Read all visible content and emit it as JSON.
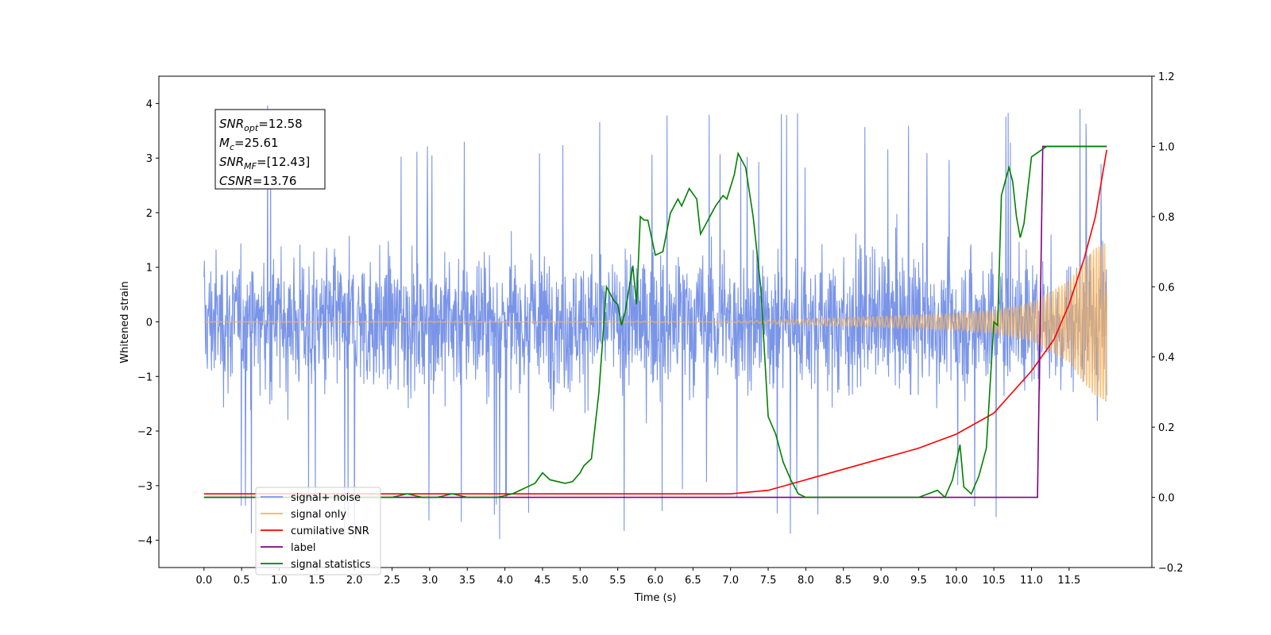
{
  "chart_data": {
    "type": "line",
    "xlabel": "Time (s)",
    "ylabel_left": "Whitened strain",
    "ylabel_right": "",
    "xlim": [
      -0.6,
      12.6
    ],
    "ylim_left": [
      -4.5,
      4.5
    ],
    "ylim_right": [
      -0.2,
      1.2
    ],
    "x_ticks": [
      0.0,
      0.5,
      1.0,
      1.5,
      2.0,
      2.5,
      3.0,
      3.5,
      4.0,
      4.5,
      5.0,
      5.5,
      6.0,
      6.5,
      7.0,
      7.5,
      8.0,
      8.5,
      9.0,
      9.5,
      10.0,
      10.5,
      11.0,
      11.5
    ],
    "x_tick_labels": [
      "0.0",
      "0.5",
      "1.0",
      "1.5",
      "2.0",
      "2.5",
      "3.0",
      "3.5",
      "4.0",
      "4.5",
      "5.0",
      "5.5",
      "6.0",
      "6.5",
      "7.0",
      "7.5",
      "8.0",
      "8.5",
      "9.0",
      "9.5",
      "10.0",
      "10.5",
      "11.0",
      "11.5"
    ],
    "y_left_ticks": [
      -4,
      -3,
      -2,
      -1,
      0,
      1,
      2,
      3,
      4
    ],
    "y_left_tick_labels": [
      "−4",
      "−3",
      "−2",
      "−1",
      "0",
      "1",
      "2",
      "3",
      "4"
    ],
    "y_right_ticks": [
      -0.2,
      0.0,
      0.2,
      0.4,
      0.6,
      0.8,
      1.0,
      1.2
    ],
    "y_right_tick_labels": [
      "−0.2",
      "0.0",
      "0.2",
      "0.4",
      "0.6",
      "0.8",
      "1.0",
      "1.2"
    ],
    "grid": false,
    "legend_position": "lower-left",
    "annotation": {
      "lines": [
        {
          "name": "SNR",
          "sub": "opt",
          "value": "=12.58"
        },
        {
          "name": "M",
          "sub": "c",
          "value": "=25.61"
        },
        {
          "name": "SNR",
          "sub": "MF",
          "value": "=[12.43]"
        },
        {
          "name": "CSNR",
          "sub": "",
          "value": "=13.76"
        }
      ]
    },
    "series": [
      {
        "name": "signal+ noise",
        "axis": "left",
        "color": "#7a95e8",
        "style": "noise",
        "x_range": [
          0.0,
          12.0
        ],
        "envelope_typical": 1.8,
        "peak_values": [
          4.1,
          -4.0
        ]
      },
      {
        "name": "signal only",
        "axis": "left",
        "color": "#f5b35c",
        "style": "chirp",
        "x_range": [
          0.0,
          12.0
        ],
        "amplitude_points": [
          [
            0.0,
            0.0
          ],
          [
            7.0,
            0.01
          ],
          [
            8.0,
            0.05
          ],
          [
            9.0,
            0.1
          ],
          [
            10.0,
            0.15
          ],
          [
            10.5,
            0.2
          ],
          [
            11.0,
            0.35
          ],
          [
            11.5,
            0.75
          ],
          [
            11.8,
            1.3
          ],
          [
            12.0,
            1.5
          ]
        ]
      },
      {
        "name": "cumilative SNR",
        "axis": "right",
        "color": "#ff0000",
        "x": [
          0.0,
          7.0,
          7.5,
          8.0,
          8.5,
          9.0,
          9.5,
          10.0,
          10.5,
          11.0,
          11.3,
          11.5,
          11.7,
          11.85,
          12.0
        ],
        "y": [
          0.01,
          0.01,
          0.02,
          0.05,
          0.08,
          0.11,
          0.14,
          0.18,
          0.24,
          0.36,
          0.45,
          0.55,
          0.68,
          0.8,
          0.99
        ]
      },
      {
        "name": "label",
        "axis": "right",
        "color": "#800080",
        "x": [
          0.0,
          11.08,
          11.15,
          12.0
        ],
        "y": [
          0.0,
          0.0,
          1.0,
          1.0
        ]
      },
      {
        "name": "signal statistics",
        "axis": "right",
        "color": "#008000",
        "x": [
          0.0,
          2.5,
          2.7,
          2.9,
          3.1,
          3.3,
          3.5,
          3.7,
          3.9,
          4.0,
          4.1,
          4.2,
          4.3,
          4.4,
          4.5,
          4.6,
          4.7,
          4.8,
          4.9,
          5.0,
          5.05,
          5.15,
          5.25,
          5.35,
          5.45,
          5.5,
          5.55,
          5.6,
          5.7,
          5.75,
          5.8,
          5.85,
          5.9,
          6.0,
          6.1,
          6.2,
          6.3,
          6.35,
          6.45,
          6.55,
          6.6,
          6.7,
          6.8,
          6.9,
          6.95,
          7.05,
          7.1,
          7.2,
          7.3,
          7.4,
          7.5,
          7.6,
          7.7,
          7.8,
          7.9,
          8.0,
          8.3,
          9.5,
          9.75,
          9.85,
          9.95,
          10.05,
          10.1,
          10.2,
          10.3,
          10.4,
          10.5,
          10.55,
          10.6,
          10.7,
          10.75,
          10.8,
          10.85,
          10.9,
          11.0,
          11.2,
          11.4,
          12.0
        ],
        "y": [
          0.0,
          0.0,
          0.01,
          0.0,
          0.0,
          0.01,
          0.0,
          0.0,
          0.0,
          0.005,
          0.01,
          0.02,
          0.03,
          0.04,
          0.07,
          0.05,
          0.045,
          0.04,
          0.045,
          0.07,
          0.09,
          0.11,
          0.3,
          0.6,
          0.56,
          0.55,
          0.49,
          0.53,
          0.66,
          0.55,
          0.8,
          0.79,
          0.79,
          0.69,
          0.7,
          0.81,
          0.85,
          0.83,
          0.88,
          0.85,
          0.75,
          0.79,
          0.83,
          0.86,
          0.85,
          0.92,
          0.98,
          0.94,
          0.8,
          0.6,
          0.23,
          0.18,
          0.1,
          0.05,
          0.01,
          0.0,
          0.0,
          0.0,
          0.02,
          0.0,
          0.05,
          0.15,
          0.03,
          0.01,
          0.06,
          0.14,
          0.5,
          0.49,
          0.86,
          0.94,
          0.9,
          0.8,
          0.74,
          0.78,
          0.97,
          1.0,
          1.0,
          1.0
        ]
      }
    ],
    "legend": [
      {
        "label": "signal+ noise",
        "color": "#7a95e8"
      },
      {
        "label": "signal only",
        "color": "#f5b35c"
      },
      {
        "label": "cumilative SNR",
        "color": "#ff0000"
      },
      {
        "label": "label",
        "color": "#800080"
      },
      {
        "label": "signal statistics",
        "color": "#008000"
      }
    ]
  }
}
